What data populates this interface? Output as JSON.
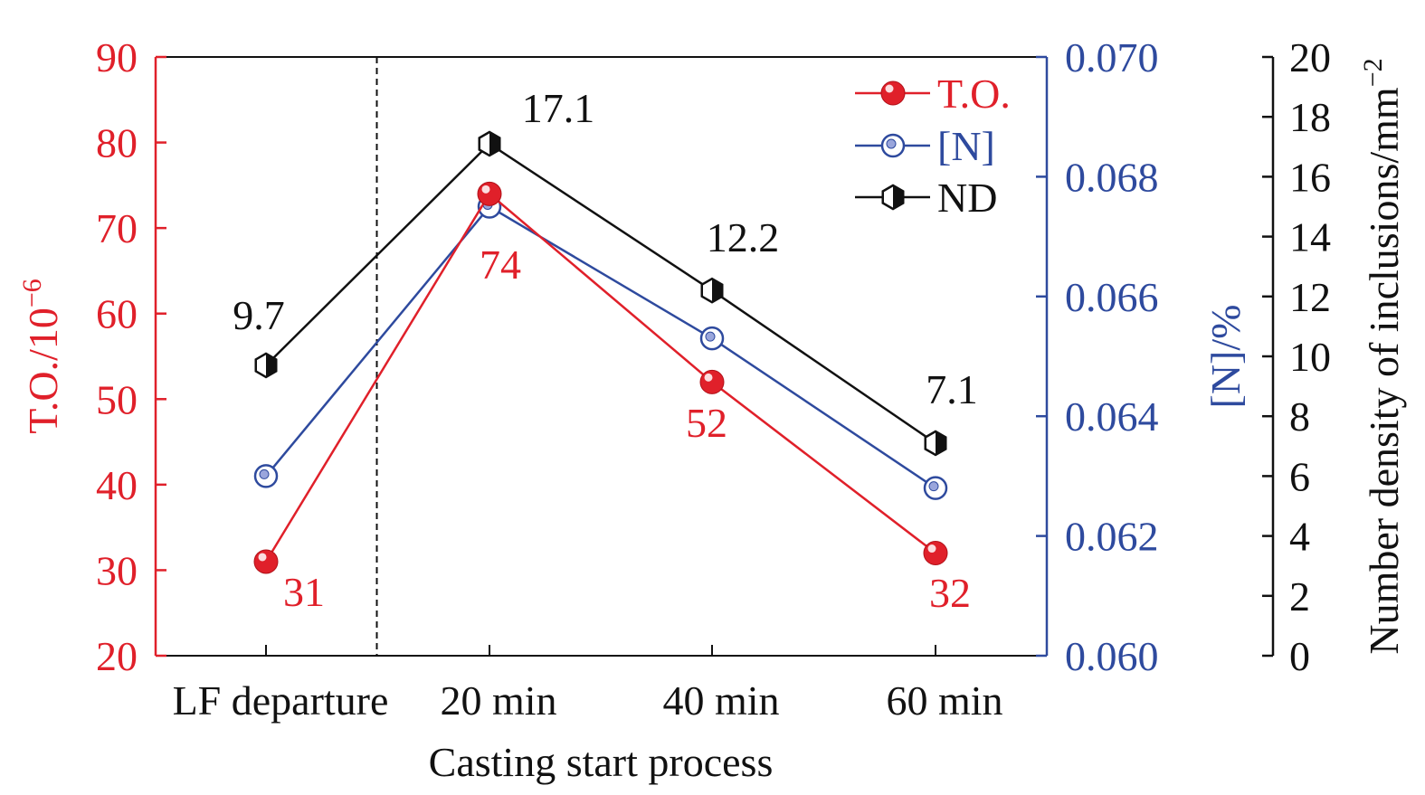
{
  "chart_data": {
    "type": "line",
    "xlabel": "Casting start process",
    "categories": [
      "LF departure",
      "20 min",
      "40 min",
      "60 min"
    ],
    "axes": {
      "left": {
        "label": "T.O./10",
        "label_exp": "−6",
        "range": [
          20,
          90
        ],
        "ticks": [
          20,
          30,
          40,
          50,
          60,
          70,
          80,
          90
        ],
        "color": "#e0202a"
      },
      "right1": {
        "label": "[N]/%",
        "range": [
          0.06,
          0.07
        ],
        "ticks": [
          "0.060",
          "0.062",
          "0.064",
          "0.066",
          "0.068",
          "0.070"
        ],
        "color": "#2e4a9e"
      },
      "right2": {
        "label": "Number density of inclusions/mm",
        "label_exp": "−2",
        "range": [
          0,
          20
        ],
        "ticks": [
          0,
          2,
          4,
          6,
          8,
          10,
          12,
          14,
          16,
          18,
          20
        ],
        "color": "#111111"
      }
    },
    "series": [
      {
        "name": "T.O.",
        "axis": "left",
        "color": "#e0202a",
        "marker": "filled-sphere",
        "values": [
          31,
          74,
          52,
          32
        ],
        "labels": [
          "31",
          "74",
          "52",
          "32"
        ]
      },
      {
        "name": "[N]",
        "axis": "right1",
        "color": "#2e4a9e",
        "marker": "open-circle-dot",
        "values": [
          0.063,
          0.0675,
          0.0653,
          0.0628
        ]
      },
      {
        "name": "ND",
        "axis": "right2",
        "color": "#111111",
        "marker": "half-filled-hexagon",
        "values": [
          9.7,
          17.1,
          12.2,
          7.1
        ],
        "labels": [
          "9.7",
          "17.1",
          "12.2",
          "7.1"
        ]
      }
    ],
    "annotations": {
      "divider_after_category": 0,
      "divider_style": "dashed"
    },
    "legend": {
      "position": "top-right"
    },
    "grid": false
  }
}
